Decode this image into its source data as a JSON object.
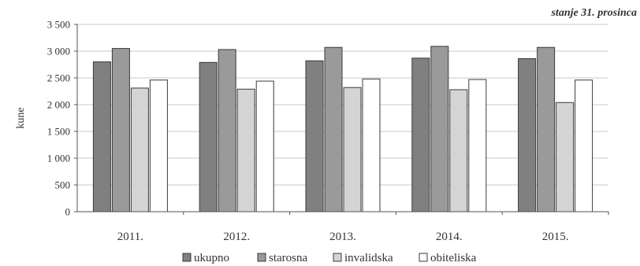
{
  "chart_data": {
    "type": "bar",
    "note": "stanje 31. prosinca",
    "ylabel": "kune",
    "ylim": [
      0,
      3500
    ],
    "yticks": [
      0,
      500,
      1000,
      1500,
      2000,
      2500,
      3000,
      3500
    ],
    "ytick_labels": [
      "0",
      "500",
      "1 000",
      "1 500",
      "2 000",
      "2 500",
      "3 000",
      "3 500"
    ],
    "categories": [
      "2011.",
      "2012.",
      "2013.",
      "2014.",
      "2015."
    ],
    "grid": true,
    "legend_position": "bottom",
    "series": [
      {
        "name": "ukupno",
        "color": "#808080",
        "values": [
          2800,
          2790,
          2820,
          2870,
          2860
        ]
      },
      {
        "name": "starosna",
        "color": "#9a9a9a",
        "values": [
          3050,
          3030,
          3070,
          3090,
          3070
        ]
      },
      {
        "name": "invalidska",
        "color": "#d4d4d4",
        "values": [
          2310,
          2290,
          2320,
          2280,
          2040
        ]
      },
      {
        "name": "obiteliska",
        "color": "#ffffff",
        "values": [
          2460,
          2440,
          2480,
          2470,
          2460
        ]
      }
    ]
  }
}
